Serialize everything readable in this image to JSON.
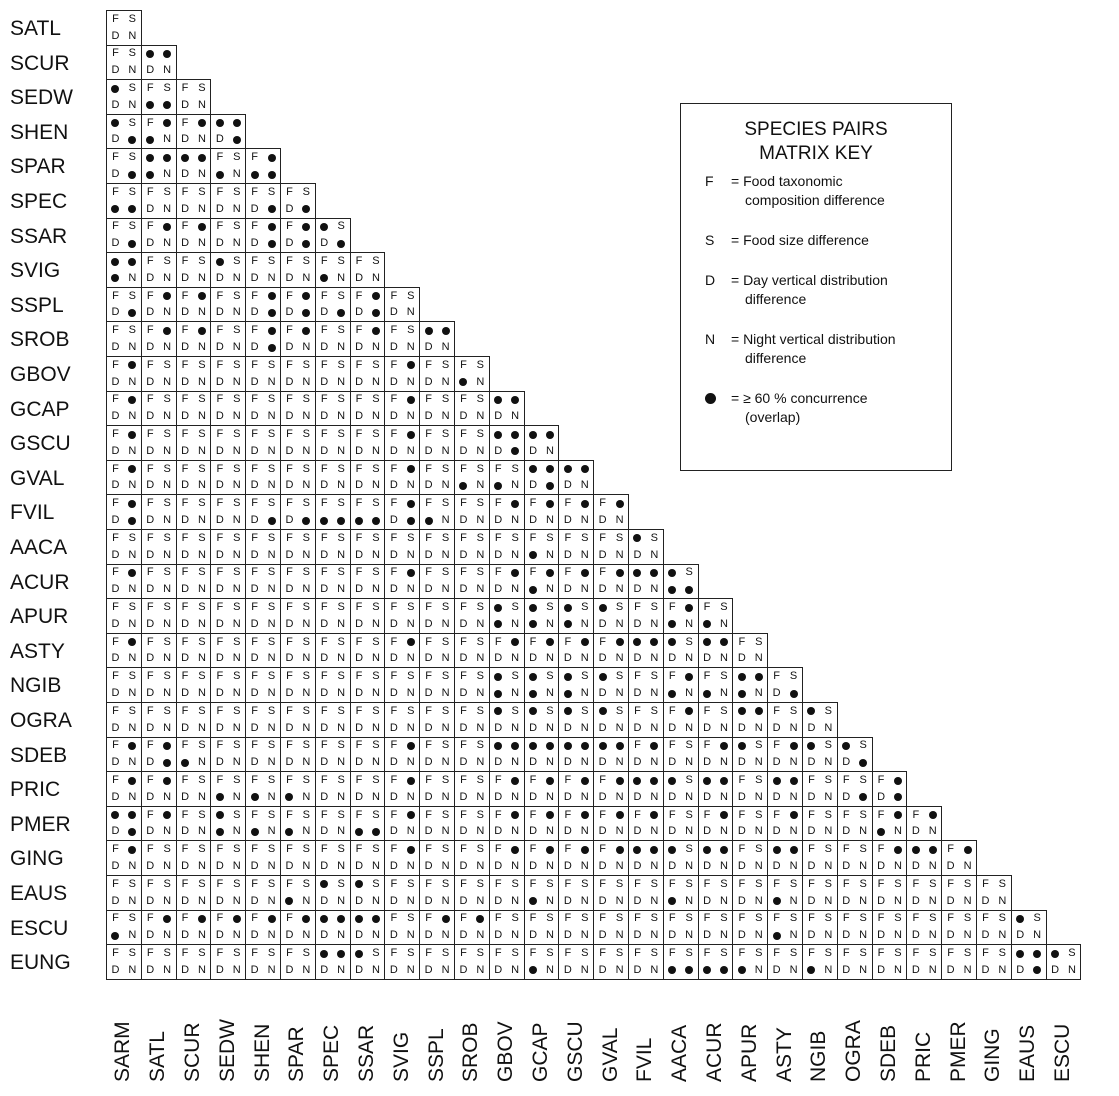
{
  "species": [
    "SARM",
    "SATL",
    "SCUR",
    "SEDW",
    "SHEN",
    "SPAR",
    "SPEC",
    "SSAR",
    "SVIG",
    "SSPL",
    "SROB",
    "GBOV",
    "GCAP",
    "GSCU",
    "GVAL",
    "FVIL",
    "AACA",
    "ACUR",
    "APUR",
    "ASTY",
    "NGIB",
    "OGRA",
    "SDEB",
    "PRIC",
    "PMER",
    "GING",
    "EAUS",
    "ESCU",
    "EUNG"
  ],
  "row_labels": [
    "SATL",
    "SCUR",
    "SEDW",
    "SHEN",
    "SPAR",
    "SPEC",
    "SSAR",
    "SVIG",
    "SSPL",
    "SROB",
    "GBOV",
    "GCAP",
    "GSCU",
    "GVAL",
    "FVIL",
    "AACA",
    "ACUR",
    "APUR",
    "ASTY",
    "NGIB",
    "OGRA",
    "SDEB",
    "PRIC",
    "PMER",
    "GING",
    "EAUS",
    "ESCU",
    "EUNG"
  ],
  "column_labels": [
    "SARM",
    "SATL",
    "SCUR",
    "SEDW",
    "SHEN",
    "SPAR",
    "SPEC",
    "SSAR",
    "SVIG",
    "SSPL",
    "SROB",
    "GBOV",
    "GCAP",
    "GSCU",
    "GVAL",
    "FVIL",
    "AACA",
    "ACUR",
    "APUR",
    "ASTY",
    "NGIB",
    "OGRA",
    "SDEB",
    "PRIC",
    "PMER",
    "GING",
    "EAUS",
    "ESCU"
  ],
  "matrix_cells_note_codes": "Each cell is a 4-character code in order F,S,D,N; a letter means difference shown, '*' means >= 60% concurrence (dot).",
  "matrix_rows": [
    [
      "FSDN"
    ],
    [
      "FSDN",
      "**DN"
    ],
    [
      "*SDN",
      "FS**",
      "FSDN"
    ],
    [
      "*SD*",
      "F**N",
      "F*DN",
      "**N*"
    ],
    [
      "FSD*",
      "***N",
      "**DN",
      "FS*N",
      "F***"
    ],
    [
      "FS**",
      "FSDN",
      "FSDN",
      "FSDN",
      "FSD*",
      "FSD*"
    ],
    [
      "FSD*",
      "F*DN",
      "F*DN",
      "FSDN",
      "F*D*",
      "F*D*",
      "*SD*"
    ],
    [
      "***N",
      "FSDN",
      "FSDN",
      "*SDN",
      "FSDN",
      "FSDN",
      "FS*N",
      "FSDN"
    ],
    [
      "FSD*",
      "F*DN",
      "F*DN",
      "FSDN",
      "F*D*",
      "F*D*",
      "FSD*",
      "F*D*",
      "FSDN"
    ],
    [
      "FSDN",
      "F*DN",
      "F*DN",
      "FSDN",
      "F*D*",
      "F*DN",
      "FSDN",
      "F*DN",
      "FSDN",
      "**DN"
    ],
    [
      "F*DN",
      "FSDN",
      "FSDN",
      "FSDN",
      "FSDN",
      "FSDN",
      "FSDN",
      "FSDN",
      "F*DN",
      "FSDN",
      "FS*N"
    ],
    [
      "F*DN",
      "FSDN",
      "FSDN",
      "FSDN",
      "FSDN",
      "FSDN",
      "FSDN",
      "FSDN",
      "F*DN",
      "FSDN",
      "FSDN",
      "**DN"
    ],
    [
      "F*DN",
      "FSDN",
      "FSDN",
      "FSDN",
      "FSDN",
      "FSDN",
      "FSDN",
      "FSDN",
      "F*DN",
      "FSDN",
      "FSDN",
      "**D*",
      "**DN"
    ],
    [
      "F*DN",
      "FSDN",
      "FSDN",
      "FSDN",
      "FSDN",
      "FSDN",
      "FSDN",
      "FSDN",
      "F*DN",
      "FSDN",
      "FS*N",
      "FS*N",
      "**N*",
      "**DN"
    ],
    [
      "F*D*",
      "FSDN",
      "FSDN",
      "FSDN",
      "FSD*",
      "FSD*",
      "FS**",
      "FS**",
      "F*D*",
      "FS*N",
      "FSDN",
      "F*DN",
      "F*DN",
      "F*DN",
      "F*DN"
    ],
    [
      "FSDN",
      "FSDN",
      "FSDN",
      "FSDN",
      "FSDN",
      "FSDN",
      "FSDN",
      "FSDN",
      "FSDN",
      "FSDN",
      "FSDN",
      "FSDN",
      "FS*N",
      "FSDN",
      "FSDN",
      "*SDN"
    ],
    [
      "F*DN",
      "FSDN",
      "FSDN",
      "FSDN",
      "FSDN",
      "FSDN",
      "FSDN",
      "FSDN",
      "F*DN",
      "FSDN",
      "FSDN",
      "F*DN",
      "F**N",
      "F*DN",
      "F*DN",
      "**DN",
      "*S**"
    ],
    [
      "FSDN",
      "FSDN",
      "FSDN",
      "FSDN",
      "FSDN",
      "FSDN",
      "FSDN",
      "FSDN",
      "FSDN",
      "FSDN",
      "FSDN",
      "*S*N",
      "*S*N",
      "*S*N",
      "*SDN",
      "FSDN",
      "F**N",
      "FS*N"
    ],
    [
      "F*DN",
      "FSDN",
      "FSDN",
      "FSDN",
      "FSDN",
      "FSDN",
      "FSDN",
      "FSDN",
      "F*DN",
      "FSDN",
      "FSDN",
      "F*DN",
      "F*DN",
      "F*DN",
      "F*DN",
      "**DN",
      "*SDN",
      "**DN",
      "FSDN"
    ],
    [
      "FSDN",
      "FSDN",
      "FSDN",
      "FSDN",
      "FSDN",
      "FSDN",
      "FSDN",
      "FSDN",
      "FSDN",
      "FSDN",
      "FSDN",
      "*S*N",
      "*S*N",
      "*S*N",
      "*SDN",
      "FSDN",
      "F**N",
      "FS*N",
      "***N",
      "FSD*"
    ],
    [
      "FSDN",
      "FSDN",
      "FSDN",
      "FSDN",
      "FSDN",
      "FSDN",
      "FSDN",
      "FSDN",
      "FSDN",
      "FSDN",
      "FSDN",
      "*SDN",
      "*SDN",
      "*SDN",
      "*SDN",
      "FSDN",
      "F*DN",
      "FSDN",
      "**DN",
      "FSDN",
      "*SDN"
    ],
    [
      "F*DN",
      "F*D*",
      "FS*N",
      "FSDN",
      "FSDN",
      "FSDN",
      "FSDN",
      "FSDN",
      "F*DN",
      "FSDN",
      "FSDN",
      "**DN",
      "**DN",
      "**DN",
      "**DN",
      "F*DN",
      "FSDN",
      "F*DN",
      "*SDN",
      "F*DN",
      "*SDN",
      "*SD*"
    ],
    [
      "F*DN",
      "F*DN",
      "FSDN",
      "FS*N",
      "FS*N",
      "FS*N",
      "FSDN",
      "FSDN",
      "F*DN",
      "FSDN",
      "FSDN",
      "F*DN",
      "F*DN",
      "F*DN",
      "F*DN",
      "**DN",
      "*SDN",
      "**DN",
      "FSDN",
      "**DN",
      "FSDN",
      "FSD*",
      "F*D*"
    ],
    [
      "**D*",
      "F*DN",
      "FSDN",
      "*S*N",
      "FS*N",
      "FS*N",
      "FSDN",
      "FS**",
      "F*DN",
      "FSDN",
      "FSDN",
      "F*DN",
      "F*DN",
      "F*DN",
      "F*DN",
      "F*DN",
      "FSDN",
      "F*DN",
      "FSDN",
      "F*DN",
      "FSDN",
      "FSDN",
      "F**N",
      "F*DN"
    ],
    [
      "F*DN",
      "FSDN",
      "FSDN",
      "FSDN",
      "FSDN",
      "FSDN",
      "FSDN",
      "FSDN",
      "F*DN",
      "FSDN",
      "FSDN",
      "F*DN",
      "F*DN",
      "F*DN",
      "F*DN",
      "**DN",
      "*SDN",
      "**DN",
      "FSDN",
      "**DN",
      "FSDN",
      "FSDN",
      "F*DN",
      "**DN",
      "F*DN"
    ],
    [
      "FSDN",
      "FSDN",
      "FSDN",
      "FSDN",
      "FSDN",
      "FS*N",
      "*SDN",
      "*SDN",
      "FSDN",
      "FSDN",
      "FSDN",
      "FSDN",
      "FS*N",
      "FSDN",
      "FSDN",
      "FSDN",
      "FS*N",
      "FSDN",
      "FSDN",
      "FS*N",
      "FSDN",
      "FSDN",
      "FSDN",
      "FSDN",
      "FSDN",
      "FSDN"
    ],
    [
      "FS*N",
      "F*DN",
      "F*DN",
      "F*DN",
      "F*DN",
      "F*DN",
      "**DN",
      "**DN",
      "FSDN",
      "F*DN",
      "F*DN",
      "FSDN",
      "FSDN",
      "FSDN",
      "FSDN",
      "FSDN",
      "FSDN",
      "FSDN",
      "FSDN",
      "FS*N",
      "FSDN",
      "FSDN",
      "FSDN",
      "FSDN",
      "FSDN",
      "FSDN",
      "*SDN"
    ],
    [
      "FSDN",
      "FSDN",
      "FSDN",
      "FSDN",
      "FSDN",
      "FSDN",
      "**DN",
      "*SDN",
      "FSDN",
      "FSDN",
      "FSDN",
      "FSDN",
      "FS*N",
      "FSDN",
      "FSDN",
      "FSDN",
      "FS**",
      "FS**",
      "FS*N",
      "FSDN",
      "FS*N",
      "FSDN",
      "FSDN",
      "FSDN",
      "FSDN",
      "FSDN",
      "**D*",
      "*SDN"
    ]
  ],
  "key": {
    "title_line1": "SPECIES PAIRS",
    "title_line2": "MATRIX KEY",
    "entries": [
      {
        "code": "F",
        "line1": "= Food taxonomic",
        "line2": "composition difference"
      },
      {
        "code": "S",
        "line1": "= Food size difference",
        "line2": ""
      },
      {
        "code": "D",
        "line1": "= Day vertical distribution",
        "line2": "difference"
      },
      {
        "code": "N",
        "line1": "= Night vertical distribution",
        "line2": "difference"
      }
    ],
    "dot_entry_line1": "= ≥ 60 % concurrence",
    "dot_entry_line2": "(overlap)"
  }
}
